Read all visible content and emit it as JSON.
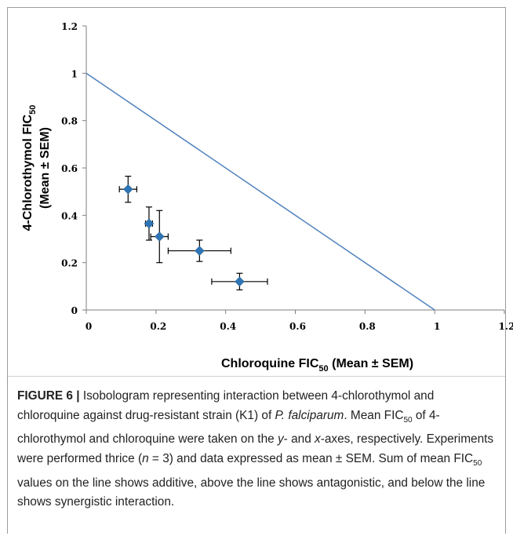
{
  "chart_data": {
    "type": "scatter",
    "title": "",
    "xlabel": "Chloroquine FIC",
    "xlabel_sub": "50",
    "xlabel_tail": " (Mean ± SEM)",
    "ylabel_line1": "4-Chlorothymol  FIC",
    "ylabel_line1_sub": "50",
    "ylabel_line2": "(Mean ± SEM)",
    "xlim": [
      0,
      1.2
    ],
    "ylim": [
      0,
      1.2
    ],
    "xticks": [
      "0",
      "0.2",
      "0.4",
      "0.6",
      "0.8",
      "1",
      "1.2"
    ],
    "yticks": [
      "0",
      "0.2",
      "0.4",
      "0.6",
      "0.8",
      "1",
      "1.2"
    ],
    "grid": false,
    "marker_color": "#2E75B6",
    "line_color": "#4F81BD",
    "additivity_line": {
      "x": [
        0,
        1
      ],
      "y": [
        1,
        0
      ]
    },
    "points": [
      {
        "x": 0.12,
        "y": 0.51,
        "xerr": 0.025,
        "yerr": 0.055
      },
      {
        "x": 0.18,
        "y": 0.365,
        "xerr": 0.01,
        "yerr": 0.07
      },
      {
        "x": 0.21,
        "y": 0.31,
        "xerr": 0.025,
        "yerr": 0.11
      },
      {
        "x": 0.325,
        "y": 0.25,
        "xerr": 0.09,
        "yerr": 0.045
      },
      {
        "x": 0.44,
        "y": 0.12,
        "xerr": 0.08,
        "yerr": 0.035
      }
    ]
  },
  "caption": {
    "label": "FIGURE 6 |",
    "p1": " Isobologram representing interaction between 4-chlorothymol and chloroquine against drug-resistant strain (K1) of ",
    "p1_em": "P. falciparum",
    "p2": ". Mean FIC",
    "sub1": "50",
    "p3": " of 4-chlorothymol and chloroquine were taken on the ",
    "em_y": "y",
    "p4": "- and ",
    "em_x": "x",
    "p5": "-axes, respectively. Experiments were performed thrice (",
    "em_n": "n",
    "p6": " = 3) and data expressed as mean ± SEM. Sum of mean FIC",
    "sub2": "50",
    "p7": " values on the line shows additive, above the line shows antagonistic, and below the line shows synergistic interaction."
  }
}
